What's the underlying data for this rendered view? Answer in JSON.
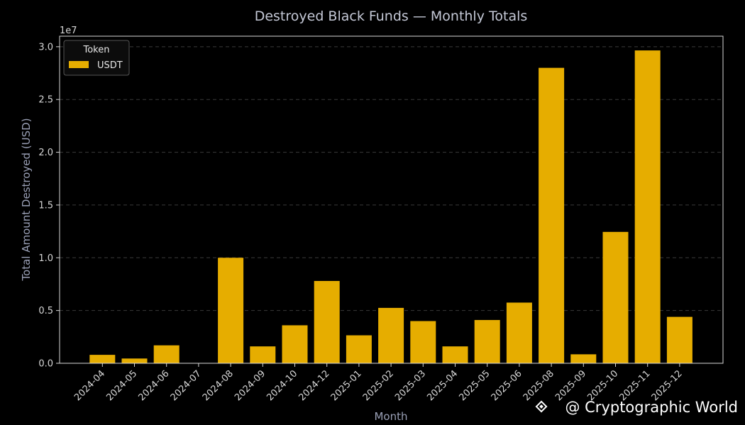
{
  "chart_data": {
    "type": "bar",
    "title": "Destroyed Black Funds — Monthly Totals",
    "xlabel": "Month",
    "ylabel": "Total Amount Destroyed (USD)",
    "y_scale_label": "1e7",
    "y_multiplier": 10000000,
    "ylim": [
      0,
      3.1
    ],
    "yticks": [
      0.0,
      0.5,
      1.0,
      1.5,
      2.0,
      2.5,
      3.0
    ],
    "ytick_labels": [
      "0.0",
      "0.5",
      "1.0",
      "1.5",
      "2.0",
      "2.5",
      "3.0"
    ],
    "grid": "horizontal dashed",
    "legend": {
      "title": "Token",
      "placement": "top-left"
    },
    "categories": [
      "2024-04",
      "2024-05",
      "2024-06",
      "2024-07",
      "2024-08",
      "2024-09",
      "2024-10",
      "2024-12",
      "2025-01",
      "2025-02",
      "2025-03",
      "2025-04",
      "2025-05",
      "2025-06",
      "2025-08",
      "2025-09",
      "2025-10",
      "2025-11",
      "2025-12"
    ],
    "series": [
      {
        "name": "USDT",
        "color": "#e6ad00",
        "values": [
          0.08,
          0.045,
          0.17,
          0.0,
          1.0,
          0.16,
          0.36,
          0.78,
          0.265,
          0.525,
          0.4,
          0.16,
          0.41,
          0.575,
          2.8,
          0.085,
          1.245,
          2.965,
          0.44
        ]
      }
    ]
  },
  "watermark": {
    "text": "@ Cryptographic World",
    "icon": "binance-diamond-icon"
  },
  "colors": {
    "background": "#000000",
    "axes": "#d8d8d8",
    "grid": "#3a3a3a",
    "bar": "#e6ad00"
  }
}
